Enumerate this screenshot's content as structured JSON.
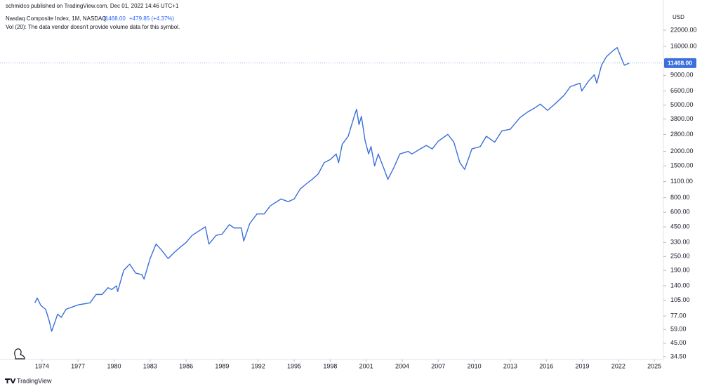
{
  "chart_data": {
    "type": "line",
    "publisher": "schmidco published on TradingView.com, Dec 01, 2022 14:46 UTC+1",
    "title": "Nasdaq Composite Index, 1M, NASDAQ",
    "last_value_label": "11468.00",
    "change": "+479.85 (+4.37%)",
    "volume_note": "Vol (20): The data vendor doesn't provide volume data for this symbol.",
    "currency": "USD",
    "brand": "TradingView",
    "color": "#3b6fdc",
    "log_scale": true,
    "grid": false,
    "xlim": [
      1970.5,
      2025.75
    ],
    "xticks": [
      1974,
      1977,
      1980,
      1983,
      1986,
      1989,
      1992,
      1995,
      1998,
      2001,
      2004,
      2007,
      2010,
      2013,
      2016,
      2019,
      2022,
      2025
    ],
    "ylim": [
      32.6,
      39950
    ],
    "yticks": [
      {
        "value": 22000,
        "label": "22000.00"
      },
      {
        "value": 16000,
        "label": "16000.00"
      },
      {
        "value": 9000,
        "label": "9000.00"
      },
      {
        "value": 6600,
        "label": "6600.00"
      },
      {
        "value": 5000,
        "label": "5000.00"
      },
      {
        "value": 3800,
        "label": "3800.00"
      },
      {
        "value": 2800,
        "label": "2800.00"
      },
      {
        "value": 2000,
        "label": "2000.00"
      },
      {
        "value": 1500,
        "label": "1500.00"
      },
      {
        "value": 1100,
        "label": "1100.00"
      },
      {
        "value": 800,
        "label": "800.00"
      },
      {
        "value": 600,
        "label": "600.00"
      },
      {
        "value": 450,
        "label": "450.00"
      },
      {
        "value": 330,
        "label": "330.00"
      },
      {
        "value": 250,
        "label": "250.00"
      },
      {
        "value": 190,
        "label": "190.00"
      },
      {
        "value": 140,
        "label": "140.00"
      },
      {
        "value": 105,
        "label": "105.00"
      },
      {
        "value": 77,
        "label": "77.00"
      },
      {
        "value": 59,
        "label": "59.00"
      },
      {
        "value": 45,
        "label": "45.00"
      },
      {
        "value": 34.5,
        "label": "34.50"
      }
    ],
    "x": [
      1973.4,
      1973.6,
      1973.9,
      1974.3,
      1974.6,
      1974.8,
      1975.0,
      1975.3,
      1975.6,
      1976.0,
      1976.5,
      1977.0,
      1977.5,
      1978.0,
      1978.5,
      1979.0,
      1979.5,
      1979.8,
      1980.2,
      1980.3,
      1980.8,
      1981.3,
      1981.8,
      1982.3,
      1982.5,
      1983.0,
      1983.5,
      1984.0,
      1984.5,
      1985.0,
      1985.5,
      1986.0,
      1986.5,
      1987.0,
      1987.6,
      1987.9,
      1988.5,
      1989.0,
      1989.6,
      1990.0,
      1990.6,
      1990.8,
      1991.3,
      1991.9,
      1992.5,
      1993.0,
      1993.9,
      1994.5,
      1995.0,
      1995.5,
      1996.0,
      1996.5,
      1997.0,
      1997.5,
      1998.0,
      1998.5,
      1998.7,
      1999.0,
      1999.5,
      2000.0,
      2000.2,
      2000.4,
      2000.6,
      2000.9,
      2001.2,
      2001.4,
      2001.7,
      2002.0,
      2002.5,
      2002.8,
      2003.3,
      2003.8,
      2004.5,
      2004.8,
      2005.5,
      2006.0,
      2006.5,
      2007.0,
      2007.8,
      2008.3,
      2008.8,
      2009.2,
      2009.8,
      2010.5,
      2011.0,
      2011.7,
      2012.3,
      2013.0,
      2013.8,
      2014.5,
      2015.0,
      2015.5,
      2016.1,
      2016.8,
      2017.5,
      2018.0,
      2018.8,
      2018.95,
      2019.5,
      2020.0,
      2020.2,
      2020.6,
      2021.0,
      2021.5,
      2021.9,
      2022.3,
      2022.5,
      2022.9
    ],
    "values": [
      100,
      110,
      95,
      88,
      70,
      57,
      65,
      80,
      75,
      88,
      92,
      96,
      98,
      100,
      118,
      118,
      135,
      130,
      140,
      125,
      190,
      215,
      180,
      175,
      160,
      240,
      320,
      280,
      240,
      270,
      300,
      330,
      380,
      410,
      450,
      320,
      380,
      390,
      470,
      440,
      440,
      340,
      480,
      580,
      580,
      680,
      780,
      740,
      780,
      950,
      1050,
      1150,
      1280,
      1600,
      1700,
      1900,
      1600,
      2300,
      2700,
      4000,
      4600,
      3400,
      4000,
      2500,
      1900,
      2200,
      1500,
      1900,
      1400,
      1150,
      1450,
      1900,
      2000,
      1900,
      2100,
      2250,
      2100,
      2450,
      2800,
      2400,
      1600,
      1400,
      2100,
      2200,
      2700,
      2400,
      3000,
      3100,
      3900,
      4400,
      4700,
      5100,
      4500,
      5200,
      6100,
      7200,
      7700,
      6600,
      8000,
      9100,
      7700,
      11000,
      13000,
      14500,
      15600,
      12300,
      11000,
      11468
    ]
  }
}
